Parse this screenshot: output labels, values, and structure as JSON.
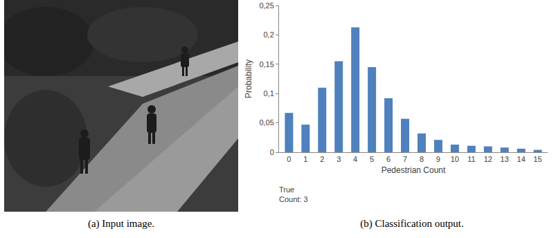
{
  "chart_data": {
    "type": "bar",
    "categories": [
      "0",
      "1",
      "2",
      "3",
      "4",
      "5",
      "6",
      "7",
      "8",
      "9",
      "10",
      "11",
      "12",
      "13",
      "14",
      "15"
    ],
    "values": [
      0.067,
      0.047,
      0.11,
      0.155,
      0.213,
      0.145,
      0.092,
      0.057,
      0.032,
      0.021,
      0.013,
      0.011,
      0.01,
      0.008,
      0.006,
      0.004
    ],
    "color": "#4f81bd",
    "x_label": "Pedestrian Count",
    "y_label": "Probability",
    "ylim": [
      0,
      0.25
    ],
    "yticks": [
      0,
      {
        "value": 0.05,
        "label": "0,05"
      },
      {
        "value": 0.1,
        "label": "0,1"
      },
      {
        "value": 0.15,
        "label": "0,15"
      },
      {
        "value": 0.2,
        "label": "0,2"
      },
      {
        "value": 0.25,
        "label": "0,25"
      }
    ],
    "grid": false,
    "annotations": [
      {
        "lines": [
          "True",
          "Count: 3"
        ]
      }
    ]
  },
  "captions": [
    "(a) Input image.",
    "(b) Classification output."
  ]
}
